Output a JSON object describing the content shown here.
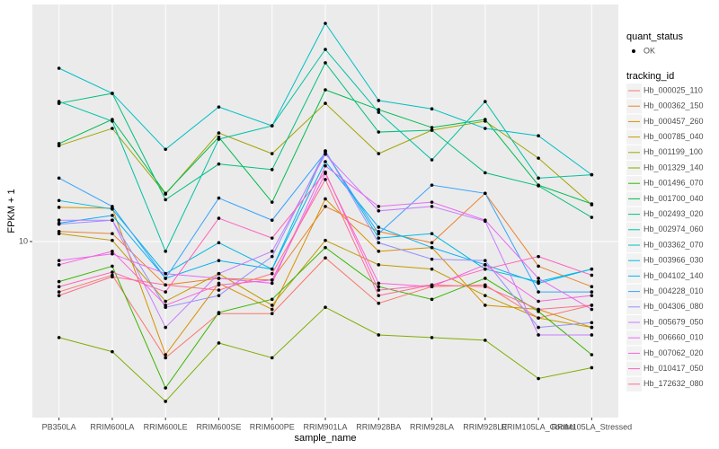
{
  "chart_data": {
    "type": "line",
    "y_label": "FPKM + 1",
    "x_label": "sample_name",
    "categories": [
      "PB350LA",
      "RRIM600LA",
      "RRIM600LE",
      "RRIM600SE",
      "RRIM600PE",
      "RRIM901LA",
      "RRIM928BA",
      "RRIM928LA",
      "RRIM928LE",
      "RRIM105LA_Control",
      "RRIM105LA_Stressed"
    ],
    "ylim": [
      2.22,
      75.9
    ],
    "yticks": [
      10
    ],
    "yscale": "log",
    "grid": true,
    "point_legend_title": "quant_status",
    "point_legend_label": "OK",
    "legend_title": "tracking_id",
    "legend_position": "right",
    "series": [
      {
        "name": "Hb_000025_110",
        "color": "#F8766D",
        "values": [
          6.5,
          7.5,
          3.7,
          5.4,
          5.4,
          8.7,
          5.9,
          6.8,
          6.9,
          5.2,
          5.8
        ]
      },
      {
        "name": "Hb_000362_150",
        "color": "#EA8331",
        "values": [
          10.9,
          10.7,
          6.9,
          7.3,
          7.2,
          13.5,
          10.9,
          9.9,
          15.1,
          8.1,
          6.8
        ]
      },
      {
        "name": "Hb_000457_260",
        "color": "#D89000",
        "values": [
          13.4,
          13.3,
          3.8,
          7.0,
          5.6,
          14.4,
          9.2,
          9.5,
          5.8,
          5.6,
          4.8
        ]
      },
      {
        "name": "Hb_000785_040",
        "color": "#C09B00",
        "values": [
          10.7,
          10.1,
          6.0,
          7.6,
          5.8,
          10.1,
          8.2,
          7.9,
          6.3,
          5.2,
          4.8
        ]
      },
      {
        "name": "Hb_001199_100",
        "color": "#A3A500",
        "values": [
          22.7,
          26.3,
          15.0,
          25.3,
          21.2,
          32.6,
          21.2,
          25.9,
          28.0,
          20.4,
          13.7
        ]
      },
      {
        "name": "Hb_001329_140",
        "color": "#7CAE00",
        "values": [
          4.4,
          3.9,
          2.55,
          4.2,
          3.7,
          5.7,
          4.5,
          4.4,
          4.3,
          3.1,
          3.4
        ]
      },
      {
        "name": "Hb_001496_070",
        "color": "#39B600",
        "values": [
          7.1,
          8.1,
          2.86,
          5.45,
          6.1,
          9.5,
          6.8,
          6.1,
          7.3,
          5.5,
          3.8
        ]
      },
      {
        "name": "Hb_001700_040",
        "color": "#00BB4E",
        "values": [
          23.1,
          28.4,
          15.1,
          24.4,
          14.0,
          36.6,
          30.9,
          26.5,
          28.4,
          16.2,
          13.8
        ]
      },
      {
        "name": "Hb_002493_020",
        "color": "#00BF7D",
        "values": [
          32.6,
          35.5,
          14.3,
          19.4,
          18.5,
          46.1,
          25.5,
          25.9,
          18.0,
          16.1,
          12.3
        ]
      },
      {
        "name": "Hb_002974_060",
        "color": "#00C1A3",
        "values": [
          33.1,
          28.0,
          9.2,
          24.0,
          26.9,
          51.7,
          30.2,
          20.1,
          33.1,
          17.2,
          17.7
        ]
      },
      {
        "name": "Hb_003362_070",
        "color": "#00BFC4",
        "values": [
          44.0,
          35.5,
          22.0,
          31.6,
          26.9,
          64.6,
          33.4,
          31.1,
          26.3,
          24.7,
          17.7
        ]
      },
      {
        "name": "Hb_003966_030",
        "color": "#00BAE0",
        "values": [
          14.2,
          13.2,
          7.6,
          9.9,
          7.9,
          21.7,
          10.3,
          10.7,
          7.9,
          7.1,
          7.9
        ]
      },
      {
        "name": "Hb_004102_140",
        "color": "#00B0F6",
        "values": [
          11.7,
          12.5,
          7.3,
          8.5,
          7.9,
          19.8,
          11.3,
          9.5,
          8.2,
          7.0,
          7.9
        ]
      },
      {
        "name": "Hb_004228_010",
        "color": "#35A2FF",
        "values": [
          17.2,
          13.5,
          7.3,
          14.5,
          12.0,
          21.4,
          10.7,
          16.2,
          15.1,
          6.5,
          6.5
        ]
      },
      {
        "name": "Hb_004306_080",
        "color": "#9590FF",
        "values": [
          11.6,
          12.0,
          5.7,
          6.3,
          8.8,
          21.7,
          9.9,
          8.6,
          8.5,
          4.8,
          5.0
        ]
      },
      {
        "name": "Hb_005679_050",
        "color": "#C77CFF",
        "values": [
          12.0,
          12.0,
          4.8,
          7.6,
          9.2,
          21.1,
          13.0,
          13.5,
          11.9,
          4.5,
          4.5
        ]
      },
      {
        "name": "Hb_006660_010",
        "color": "#E76BF3",
        "values": [
          8.5,
          9.0,
          7.6,
          7.3,
          7.0,
          19.1,
          13.5,
          14.0,
          12.0,
          7.3,
          5.6
        ]
      },
      {
        "name": "Hb_007062_020",
        "color": "#FA62DB",
        "values": [
          8.2,
          9.2,
          5.8,
          6.9,
          7.2,
          17.9,
          7.0,
          6.8,
          8.2,
          6.0,
          6.3
        ]
      },
      {
        "name": "Hb_010417_050",
        "color": "#FF62BC",
        "values": [
          6.8,
          7.7,
          6.5,
          12.2,
          10.3,
          18.1,
          6.6,
          6.9,
          7.9,
          8.8,
          7.5
        ]
      },
      {
        "name": "Hb_172632_080",
        "color": "#FF6C91",
        "values": [
          6.3,
          7.4,
          6.9,
          6.6,
          7.6,
          17.0,
          6.3,
          6.9,
          6.8,
          5.6,
          5.8
        ]
      }
    ]
  }
}
